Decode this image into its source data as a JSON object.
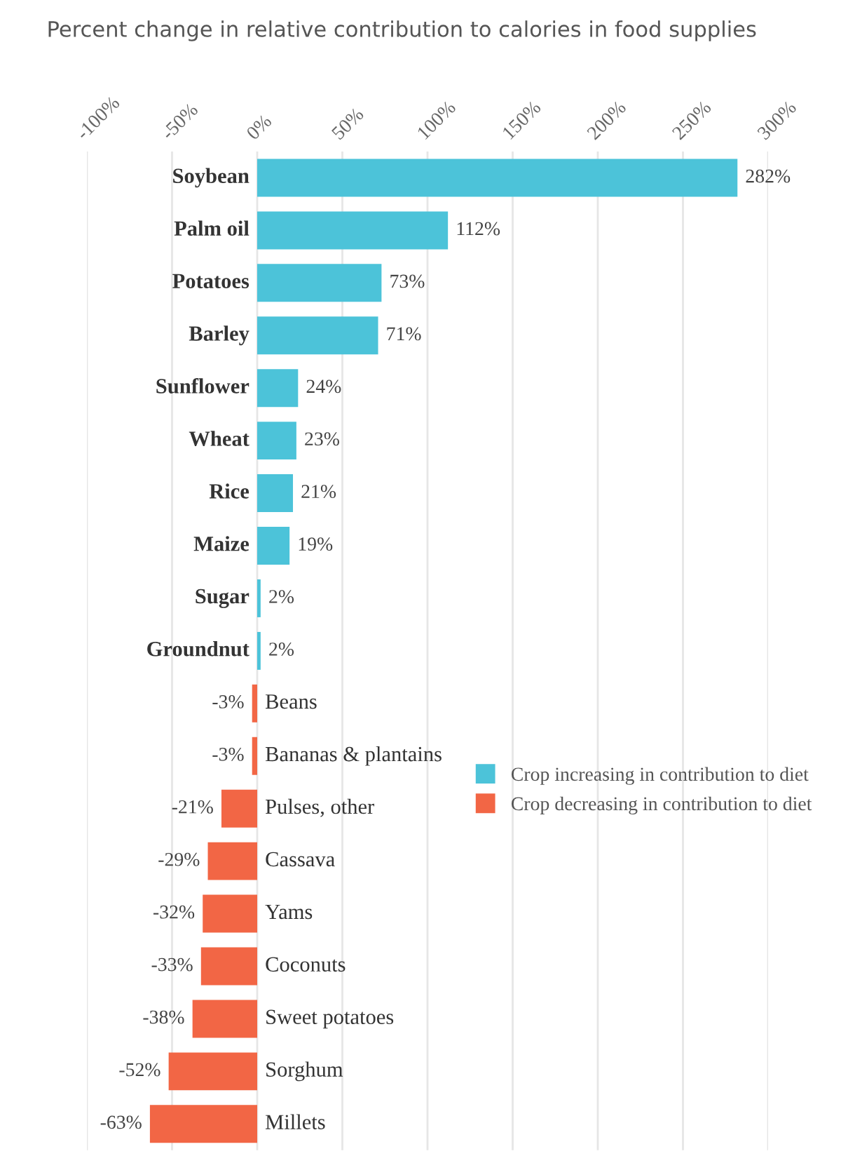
{
  "chart_data": {
    "type": "bar",
    "orientation": "horizontal",
    "title": "Percent change in relative contribution to calories in food supplies",
    "categories": [
      "Soybean",
      "Palm oil",
      "Potatoes",
      "Barley",
      "Sunflower",
      "Wheat",
      "Rice",
      "Maize",
      "Sugar",
      "Groundnut",
      "Beans",
      "Bananas & plantains",
      "Pulses, other",
      "Cassava",
      "Yams",
      "Coconuts",
      "Sweet potatoes",
      "Sorghum",
      "Millets"
    ],
    "series": [
      {
        "name": "Crop increasing in contribution to diet",
        "color": "#4cc3d9",
        "values": [
          282,
          112,
          73,
          71,
          24,
          23,
          21,
          19,
          2,
          2,
          null,
          null,
          null,
          null,
          null,
          null,
          null,
          null,
          null
        ]
      },
      {
        "name": "Crop decreasing in contribution to diet",
        "color": "#f26645",
        "values": [
          null,
          null,
          null,
          null,
          null,
          null,
          null,
          null,
          null,
          null,
          -3,
          -3,
          -21,
          -29,
          -32,
          -33,
          -38,
          -52,
          -63
        ]
      }
    ],
    "value_labels": [
      "282%",
      "112%",
      "73%",
      "71%",
      "24%",
      "23%",
      "21%",
      "19%",
      "2%",
      "2%",
      "-3%",
      "-3%",
      "-21%",
      "-29%",
      "-32%",
      "-33%",
      "-38%",
      "-52%",
      "-63%"
    ],
    "xlim": [
      -100,
      300
    ],
    "xticks": [
      {
        "value": -100,
        "label": "-100%"
      },
      {
        "value": -50,
        "label": "-50%"
      },
      {
        "value": 0,
        "label": "0%"
      },
      {
        "value": 50,
        "label": "50%"
      },
      {
        "value": 100,
        "label": "100%"
      },
      {
        "value": 150,
        "label": "150%"
      },
      {
        "value": 200,
        "label": "200%"
      },
      {
        "value": 250,
        "label": "250%"
      },
      {
        "value": 300,
        "label": "300%"
      }
    ],
    "grid": "x",
    "legend": "right"
  }
}
